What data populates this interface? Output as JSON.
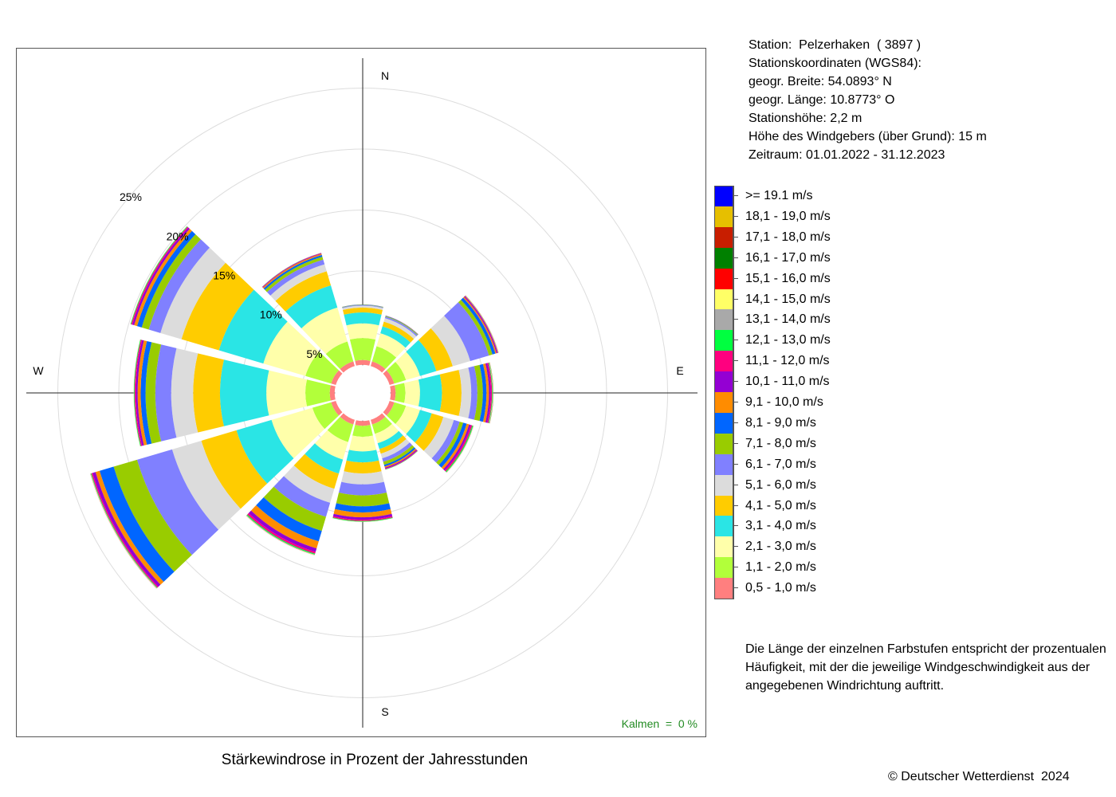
{
  "title": "Stärkewindrose in Prozent der Jahresstunden",
  "station": {
    "line1": "Station:  Pelzerhaken  ( 3897 )",
    "line2": "Stationskoordinaten (WGS84):",
    "line3": "geogr. Breite: 54.0893° N",
    "line4": "geogr. Länge: 10.8773° O",
    "line5": "Stationshöhe: 2,2 m",
    "line6": "Höhe des Windgebers (über Grund): 15 m",
    "line7": "Zeitraum: 01.01.2022 - 31.12.2023"
  },
  "kalmen": "Kalmen  =  0 %",
  "note": {
    "line1": "Die Länge der einzelnen Farbstufen entspricht der prozentualen",
    "line2": "Häufigkeit, mit der die jeweilige Windgeschwindigkeit aus der",
    "line3": "angegebenen Windrichtung auftritt."
  },
  "copyright": "© Deutscher Wetterdienst  2024",
  "chart_data": {
    "type": "polar_stacked_bar",
    "title": "Stärkewindrose in Prozent der Jahresstunden",
    "directions_deg": [
      0,
      30,
      60,
      90,
      120,
      150,
      180,
      210,
      240,
      270,
      300,
      330
    ],
    "compass": [
      {
        "label": "N",
        "angle": 0
      },
      {
        "label": "E",
        "angle": 90
      },
      {
        "label": "S",
        "angle": 180
      },
      {
        "label": "W",
        "angle": 270
      }
    ],
    "rings": [
      {
        "value": 5,
        "label": "5%"
      },
      {
        "value": 10,
        "label": "10%"
      },
      {
        "value": 15,
        "label": "15%"
      },
      {
        "value": 20,
        "label": "20%"
      },
      {
        "value": 25,
        "label": "25%"
      }
    ],
    "radial_max": 25,
    "calm_radius": 2.3,
    "bins": [
      {
        "name": "0,5 - 1,0 m/s",
        "color": "#ff7f7f"
      },
      {
        "name": "1,1 - 2,0 m/s",
        "color": "#b2ff3a"
      },
      {
        "name": "2,1 - 3,0 m/s",
        "color": "#ffffaa"
      },
      {
        "name": "3,1 - 4,0 m/s",
        "color": "#2ae5e5"
      },
      {
        "name": "4,1 - 5,0 m/s",
        "color": "#ffcc00"
      },
      {
        "name": "5,1 - 6,0 m/s",
        "color": "#dcdcdc"
      },
      {
        "name": "6,1 - 7,0 m/s",
        "color": "#8080ff"
      },
      {
        "name": "7,1 - 8,0 m/s",
        "color": "#99cc00"
      },
      {
        "name": "8,1 - 9,0 m/s",
        "color": "#0066ff"
      },
      {
        "name": "9,1 - 10,0 m/s",
        "color": "#ff8c00"
      },
      {
        "name": "10,1 - 11,0 m/s",
        "color": "#9400d3"
      },
      {
        "name": "11,1 - 12,0 m/s",
        "color": "#ff007f"
      },
      {
        "name": "12,1 - 13,0 m/s",
        "color": "#00ff40"
      },
      {
        "name": "13,1 - 14,0 m/s",
        "color": "#a9a9a9"
      },
      {
        "name": "14,1 - 15,0 m/s",
        "color": "#ffff66"
      },
      {
        "name": "15,1 - 16,0 m/s",
        "color": "#ff0000"
      },
      {
        "name": "16,1 - 17,0 m/s",
        "color": "#008000"
      },
      {
        "name": "17,1 - 18,0 m/s",
        "color": "#c81e00"
      },
      {
        "name": "18,1 - 19,0 m/s",
        "color": "#e6bf00"
      },
      {
        "name": ">= 19.1 m/s",
        "color": "#0000ff"
      }
    ],
    "series": [
      {
        "direction": 0,
        "values": [
          0.4,
          1.8,
          1.2,
          0.9,
          0.4,
          0.15,
          0.05,
          0.03,
          0.02,
          0.01,
          0,
          0,
          0,
          0,
          0,
          0,
          0,
          0,
          0,
          0
        ]
      },
      {
        "direction": 30,
        "values": [
          0.4,
          1.3,
          1.1,
          0.6,
          0.4,
          0.3,
          0.12,
          0.05,
          0.03,
          0.02,
          0.01,
          0,
          0,
          0,
          0,
          0,
          0,
          0,
          0,
          0
        ]
      },
      {
        "direction": 60,
        "values": [
          0.4,
          1.0,
          1.2,
          1.4,
          1.4,
          1.5,
          1.6,
          0.3,
          0.25,
          0.1,
          0.08,
          0.04,
          0.02,
          0.02,
          0.01,
          0.01,
          0,
          0,
          0,
          0
        ]
      },
      {
        "direction": 90,
        "values": [
          0.4,
          0.8,
          1.2,
          1.8,
          1.6,
          0.8,
          0.5,
          0.45,
          0.3,
          0.2,
          0.15,
          0.1,
          0.05,
          0.03,
          0.02,
          0.01,
          0.01,
          0,
          0,
          0
        ]
      },
      {
        "direction": 120,
        "values": [
          0.4,
          1.0,
          1.2,
          1.0,
          1.0,
          0.9,
          0.5,
          0.3,
          0.3,
          0.2,
          0.15,
          0.12,
          0.08,
          0.02,
          0.01,
          0.01,
          0,
          0,
          0,
          0
        ]
      },
      {
        "direction": 150,
        "values": [
          0.4,
          0.8,
          0.8,
          0.5,
          0.4,
          0.4,
          0.3,
          0.25,
          0.15,
          0.1,
          0.08,
          0.05,
          0.03,
          0.01,
          0,
          0,
          0,
          0,
          0,
          0
        ]
      },
      {
        "direction": 180,
        "values": [
          0.4,
          0.9,
          1.2,
          0.9,
          0.9,
          0.9,
          0.9,
          0.9,
          0.5,
          0.4,
          0.2,
          0.1,
          0.05,
          0.02,
          0.01,
          0,
          0,
          0,
          0,
          0
        ]
      },
      {
        "direction": 210,
        "values": [
          0.4,
          1.5,
          1.5,
          1.2,
          1.3,
          1.2,
          1.2,
          1.2,
          0.9,
          0.6,
          0.3,
          0.15,
          0.08,
          0.03,
          0.02,
          0.01,
          0,
          0,
          0,
          0
        ]
      },
      {
        "direction": 240,
        "values": [
          0.4,
          1.6,
          3.5,
          3.0,
          3.0,
          2.5,
          3.0,
          2.0,
          1.2,
          0.35,
          0.25,
          0.1,
          0.05,
          0.03,
          0.02,
          0.01,
          0,
          0,
          0,
          0
        ]
      },
      {
        "direction": 270,
        "values": [
          0.4,
          2.0,
          3.2,
          3.8,
          2.2,
          1.8,
          1.3,
          0.8,
          0.4,
          0.25,
          0.15,
          0.1,
          0.05,
          0.02,
          0.01,
          0,
          0,
          0,
          0,
          0
        ]
      },
      {
        "direction": 300,
        "values": [
          0.4,
          2.2,
          3.6,
          3.8,
          3.2,
          1.8,
          1.0,
          0.6,
          0.4,
          0.25,
          0.15,
          0.1,
          0.05,
          0.02,
          0.01,
          0,
          0,
          0,
          0,
          0
        ]
      },
      {
        "direction": 330,
        "values": [
          0.4,
          1.7,
          2.9,
          1.9,
          1.2,
          0.6,
          0.4,
          0.25,
          0.15,
          0.1,
          0.05,
          0.03,
          0.01,
          0,
          0,
          0,
          0,
          0,
          0,
          0
        ]
      }
    ],
    "legend_position": "right",
    "grid": true
  }
}
